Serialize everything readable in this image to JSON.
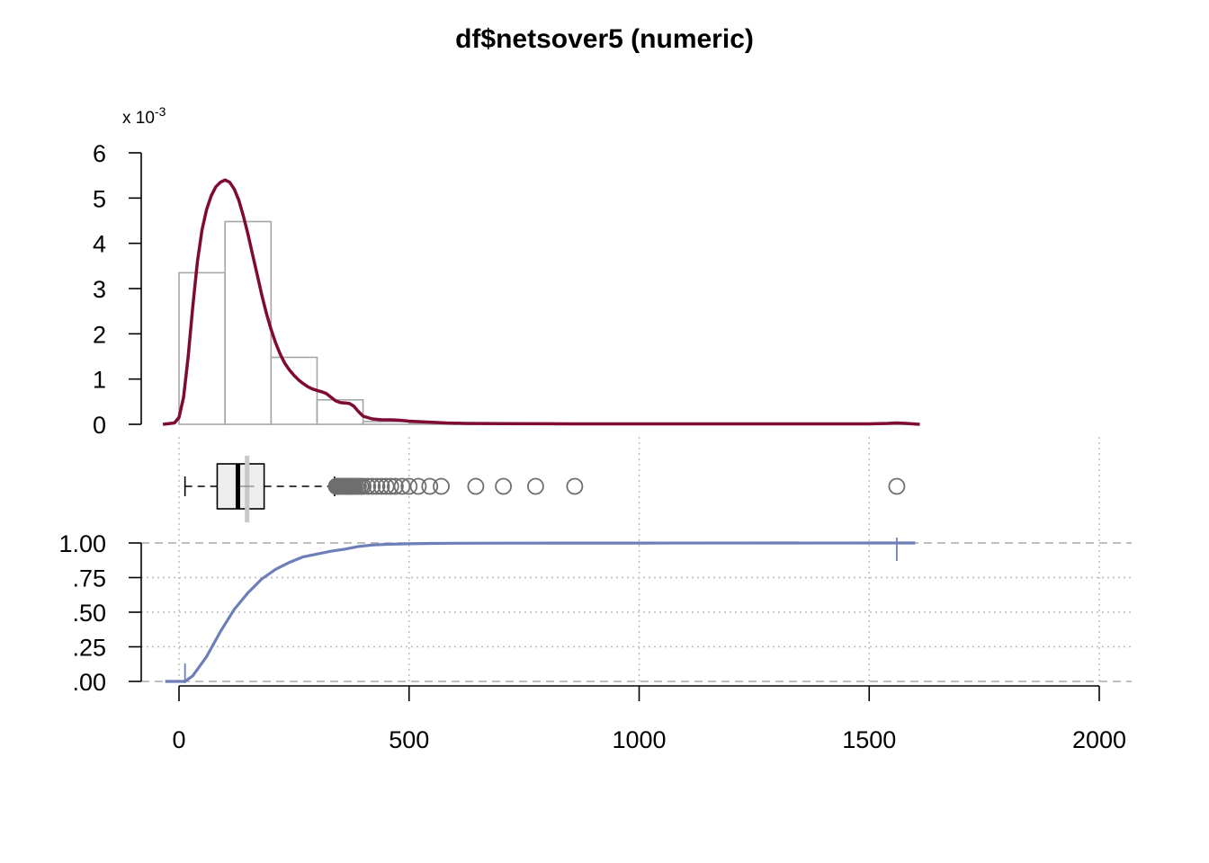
{
  "chart_data": {
    "type": "histogram",
    "title": "df$netsover5 (numeric)",
    "scale_label": "x 10",
    "scale_exponent": "-3",
    "colors": {
      "hist_stroke": "#a6a6a6",
      "density": "#7f0a36",
      "box_fill": "#eeeeee",
      "outlier": "#6e6e6e",
      "mean_line": "#c8c8c8",
      "ecdf": "#6d7fb9",
      "grid": "#bdbdbd"
    },
    "x_axis": {
      "range": [
        -40,
        2060
      ],
      "ticks": [
        0,
        500,
        1000,
        1500,
        2000
      ],
      "tick_labels": [
        "0",
        "500",
        "1000",
        "1500",
        "2000"
      ]
    },
    "histogram": {
      "ylim": [
        0,
        6
      ],
      "y_ticks": [
        0,
        1,
        2,
        3,
        4,
        5,
        6
      ],
      "y_tick_labels": [
        "0",
        "1",
        "2",
        "3",
        "4",
        "5",
        "6"
      ],
      "bins": [
        {
          "start": 0,
          "end": 100,
          "density": 3.35
        },
        {
          "start": 100,
          "end": 200,
          "density": 4.48
        },
        {
          "start": 200,
          "end": 300,
          "density": 1.48
        },
        {
          "start": 300,
          "end": 400,
          "density": 0.54
        },
        {
          "start": 400,
          "end": 500,
          "density": 0.06
        },
        {
          "start": 500,
          "end": 600,
          "density": 0.02
        },
        {
          "start": 600,
          "end": 700,
          "density": 0.01
        },
        {
          "start": 700,
          "end": 800,
          "density": 0.01
        },
        {
          "start": 800,
          "end": 900,
          "density": 0.01
        },
        {
          "start": 1500,
          "end": 1600,
          "density": 0.01
        }
      ],
      "density_curve": {
        "x": [
          -35,
          -10,
          0,
          10,
          20,
          30,
          40,
          50,
          60,
          70,
          80,
          90,
          100,
          110,
          120,
          130,
          140,
          150,
          160,
          170,
          180,
          190,
          200,
          210,
          220,
          230,
          240,
          250,
          260,
          270,
          280,
          290,
          300,
          310,
          320,
          330,
          340,
          350,
          360,
          370,
          380,
          390,
          400,
          420,
          440,
          460,
          480,
          500,
          540,
          580,
          620,
          700,
          800,
          900,
          1000,
          1200,
          1400,
          1500,
          1540,
          1560,
          1580,
          1610
        ],
        "y": [
          0,
          0.03,
          0.15,
          0.6,
          1.5,
          2.6,
          3.6,
          4.3,
          4.75,
          5.05,
          5.25,
          5.35,
          5.4,
          5.35,
          5.2,
          4.95,
          4.6,
          4.2,
          3.75,
          3.3,
          2.85,
          2.45,
          2.1,
          1.8,
          1.55,
          1.35,
          1.2,
          1.08,
          0.98,
          0.9,
          0.83,
          0.78,
          0.75,
          0.72,
          0.68,
          0.6,
          0.52,
          0.48,
          0.47,
          0.46,
          0.4,
          0.28,
          0.18,
          0.12,
          0.1,
          0.1,
          0.09,
          0.07,
          0.05,
          0.03,
          0.02,
          0.015,
          0.012,
          0.01,
          0.01,
          0.01,
          0.01,
          0.01,
          0.02,
          0.03,
          0.02,
          0.0
        ]
      }
    },
    "boxplot": {
      "min": 13,
      "q1": 83,
      "median": 128,
      "q3": 185,
      "whisker_high": 338,
      "mean": 148,
      "outliers": [
        342,
        345,
        348,
        351,
        354,
        357,
        360,
        363,
        366,
        369,
        372,
        375,
        378,
        381,
        385,
        390,
        395,
        400,
        410,
        420,
        430,
        440,
        450,
        460,
        470,
        485,
        500,
        520,
        545,
        570,
        645,
        705,
        775,
        860,
        1560
      ]
    },
    "ecdf": {
      "ylim": [
        0,
        1
      ],
      "y_ticks": [
        0,
        0.25,
        0.5,
        0.75,
        1.0
      ],
      "y_tick_labels": [
        ".00",
        ".25",
        ".50",
        ".75",
        "1.00"
      ],
      "min": 13,
      "max": 1560,
      "x": [
        -30,
        13,
        30,
        60,
        90,
        120,
        150,
        180,
        210,
        240,
        270,
        300,
        330,
        360,
        390,
        420,
        450,
        500,
        550,
        600,
        700,
        1000,
        1560,
        1600
      ],
      "y": [
        0,
        0,
        0.04,
        0.18,
        0.36,
        0.52,
        0.64,
        0.74,
        0.81,
        0.86,
        0.9,
        0.92,
        0.94,
        0.955,
        0.975,
        0.985,
        0.99,
        0.994,
        0.997,
        0.998,
        0.999,
        0.9995,
        1.0,
        1.0
      ]
    }
  }
}
